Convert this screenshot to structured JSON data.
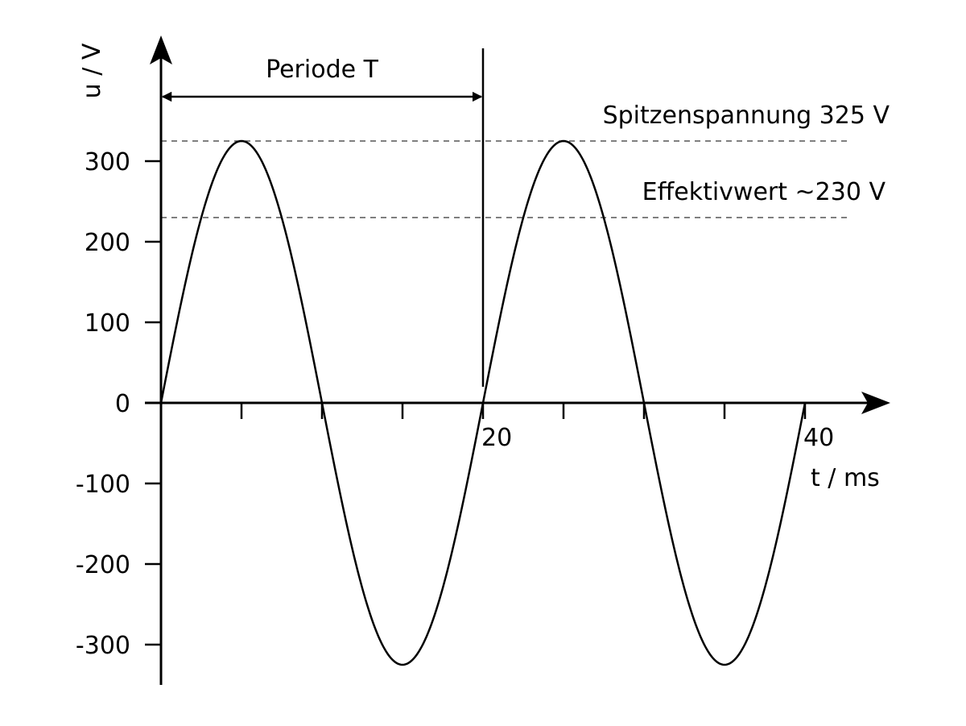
{
  "chart_data": {
    "type": "line",
    "xlabel": "t / ms",
    "ylabel": "u / V",
    "xlim": [
      0,
      45
    ],
    "ylim": [
      -350,
      350
    ],
    "x_ticks": [
      5,
      10,
      15,
      20,
      25,
      30,
      35,
      40
    ],
    "x_tick_labels": [
      {
        "value": 20,
        "label": "20"
      },
      {
        "value": 40,
        "label": "40"
      }
    ],
    "y_ticks": [
      {
        "value": 300,
        "label": "300"
      },
      {
        "value": 200,
        "label": "200"
      },
      {
        "value": 100,
        "label": "100"
      },
      {
        "value": 0,
        "label": "0"
      },
      {
        "value": -100,
        "label": "-100"
      },
      {
        "value": -200,
        "label": "-200"
      },
      {
        "value": -300,
        "label": "-300"
      }
    ],
    "series": [
      {
        "function": "sine",
        "amplitude": 325,
        "period": 20,
        "x_start": 0,
        "x_end": 40
      }
    ],
    "reference_lines": [
      {
        "value": 325,
        "label": "Spitzenspannung 325 V"
      },
      {
        "value": 230,
        "label": "Effektivwert ~230 V"
      }
    ],
    "period_annotation": {
      "label": "Periode T",
      "from": 0,
      "to": 20
    }
  }
}
